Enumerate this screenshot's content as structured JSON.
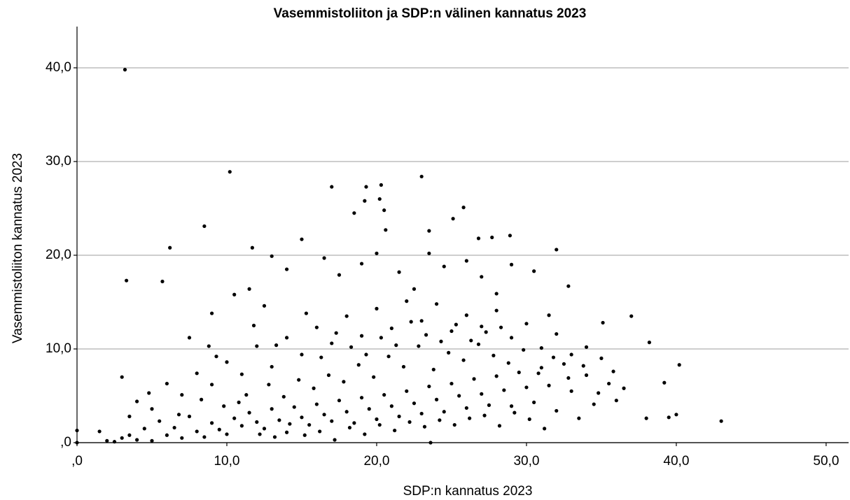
{
  "chart_data": {
    "type": "scatter",
    "title": "Vasemmistoliiton ja SDP:n välinen kannatus 2023",
    "x_label": "SDP:n kannatus 2023",
    "y_label": "Vasemmistoliiton kannatus 2023",
    "color": "#000000",
    "grid": true,
    "xlim": [
      0,
      51.5
    ],
    "ylim": [
      0,
      44.4
    ],
    "xticks": [
      {
        "value": 0,
        "label": ",0"
      },
      {
        "value": 10,
        "label": "10,0"
      },
      {
        "value": 20,
        "label": "20,0"
      },
      {
        "value": 30,
        "label": "30,0"
      },
      {
        "value": 40,
        "label": "40,0"
      },
      {
        "value": 50,
        "label": "50,0"
      }
    ],
    "yticks": [
      {
        "value": 0,
        "label": ",0"
      },
      {
        "value": 10,
        "label": "10,0"
      },
      {
        "value": 20,
        "label": "20,0"
      },
      {
        "value": 30,
        "label": "30,0"
      },
      {
        "value": 40,
        "label": "40,0"
      }
    ],
    "x": [
      0,
      0,
      3.2,
      10.2,
      23,
      8.5,
      6.2,
      3.3,
      5.7,
      3,
      43,
      40.2,
      37,
      17,
      19.3,
      20.3,
      20.2,
      19.2,
      25.8,
      18.5,
      20.5,
      25.1,
      20.6,
      23.5,
      32,
      28.9,
      11.7,
      35.1,
      38.2,
      39.2,
      40,
      39.5,
      38,
      36.5,
      1.5,
      2,
      2.5,
      3,
      3.5,
      4,
      4.5,
      5,
      5.5,
      6,
      6.5,
      7,
      7.5,
      8,
      8.5,
      9,
      9.5,
      10,
      10.5,
      11,
      11.5,
      12,
      12.5,
      13,
      13.5,
      14,
      14.5,
      15,
      15.5,
      16,
      16.5,
      17,
      17.5,
      18,
      18.5,
      19,
      19.5,
      20,
      20.5,
      21,
      21.5,
      22,
      22.5,
      23,
      23.5,
      24,
      24.5,
      25,
      25.5,
      26,
      26.5,
      27,
      27.5,
      28,
      28.5,
      29,
      29.5,
      30,
      30.5,
      31,
      31.5,
      32,
      32.5,
      33,
      33.5,
      34,
      34.5,
      35,
      35.5,
      36,
      4,
      5,
      6,
      7,
      8,
      9,
      10,
      11,
      12,
      13,
      14,
      15,
      16,
      17,
      18,
      19,
      20,
      21,
      22,
      23,
      24,
      25,
      26,
      27,
      28,
      29,
      30,
      31,
      32,
      33,
      34,
      7.5,
      9,
      10.5,
      12.5,
      14,
      15,
      16.5,
      17.5,
      19,
      20,
      21.5,
      22.5,
      23.5,
      24.5,
      26,
      27,
      28,
      29,
      30.5,
      31.5,
      32.8,
      26.8,
      27.7,
      13,
      11.5,
      3.5,
      4.8,
      6.8,
      8.3,
      9.8,
      11.3,
      12.8,
      13.8,
      14.8,
      15.8,
      16.8,
      17.8,
      18.8,
      19.8,
      20.8,
      21.8,
      22.8,
      23.8,
      24.8,
      25.8,
      26.8,
      27.8,
      28.8,
      29.8,
      30.8,
      31.8,
      32.8,
      33.8,
      34.8,
      35.8,
      16.2,
      17.2,
      18.2,
      19.2,
      20.2,
      21.2,
      22.2,
      23.2,
      23.6,
      24.2,
      25.2,
      26.2,
      27.2,
      28.2,
      29.2,
      30.2,
      31.2,
      12.2,
      13.2,
      14.2,
      15.2,
      10.8,
      9.3,
      8.8,
      11.8,
      13.3,
      15.3,
      16.3,
      17.3,
      18.3,
      19.3,
      20.3,
      21.3,
      22.3,
      23.3,
      24.3,
      25.3,
      26.3,
      27.3,
      28.3
    ],
    "values": [
      1.3,
      0,
      39.8,
      28.9,
      28.4,
      23.1,
      20.8,
      17.3,
      17.2,
      7,
      2.3,
      8.3,
      13.5,
      27.3,
      27.3,
      27.5,
      26,
      25.8,
      25.1,
      24.5,
      24.8,
      23.9,
      22.7,
      22.6,
      20.6,
      22.1,
      20.8,
      12.8,
      10.7,
      6.4,
      3,
      2.7,
      2.6,
      5.8,
      1.2,
      0.2,
      0.1,
      0.5,
      0.8,
      0.3,
      1.5,
      0.2,
      2.3,
      0.8,
      1.6,
      0.5,
      2.8,
      1.2,
      0.6,
      2.1,
      1.4,
      0.9,
      2.6,
      1.8,
      3.2,
      2.2,
      1.5,
      3.6,
      2.4,
      1.1,
      3.8,
      2.7,
      1.9,
      4.1,
      3,
      2.3,
      4.5,
      3.3,
      2.1,
      4.8,
      3.6,
      2.5,
      5.1,
      3.9,
      2.8,
      5.5,
      4.2,
      3.1,
      6,
      4.6,
      3.3,
      6.3,
      5,
      3.7,
      6.8,
      5.2,
      4,
      7.1,
      5.6,
      3.9,
      7.5,
      5.9,
      4.3,
      8,
      6.1,
      3.4,
      8.4,
      5.5,
      2.6,
      7.2,
      4.1,
      9,
      6.3,
      4.5,
      4.4,
      3.6,
      6.3,
      5.1,
      7.4,
      6.2,
      8.6,
      7.3,
      10.3,
      8.1,
      11.2,
      9.4,
      12.3,
      10.6,
      13.5,
      11.4,
      14.3,
      12.2,
      15.1,
      13,
      14.8,
      11.9,
      13.6,
      12.4,
      14.1,
      11.2,
      12.7,
      10.1,
      11.6,
      9.4,
      10.2,
      11.2,
      13.8,
      15.8,
      14.6,
      18.5,
      21.7,
      19.7,
      17.9,
      19.1,
      20.2,
      18.2,
      16.4,
      20.2,
      18.8,
      19.4,
      17.7,
      15.9,
      19,
      18.3,
      13.6,
      16.7,
      21.8,
      21.9,
      19.9,
      16.4,
      2.8,
      5.3,
      3,
      4.6,
      3.9,
      5.1,
      6.2,
      4.9,
      6.7,
      5.8,
      7.2,
      6.5,
      8.3,
      7,
      9.2,
      8.1,
      10.3,
      7.8,
      9.6,
      8.8,
      10.5,
      9.3,
      8.5,
      9.9,
      7.4,
      9.1,
      6.9,
      8.2,
      5.3,
      7.6,
      1.2,
      0.3,
      1.6,
      0.9,
      1.9,
      1.3,
      2.2,
      1.7,
      0,
      2.4,
      1.9,
      2.6,
      2.9,
      1.8,
      3.2,
      2.5,
      1.5,
      0.9,
      0.6,
      2,
      0.8,
      4.3,
      9.2,
      10.3,
      12.5,
      10.4,
      13.8,
      9.1,
      11.7,
      10.2,
      9.4,
      11.2,
      10.4,
      12.9,
      11.5,
      10.8,
      12.6,
      10.9,
      11.8,
      12.3
    ]
  }
}
